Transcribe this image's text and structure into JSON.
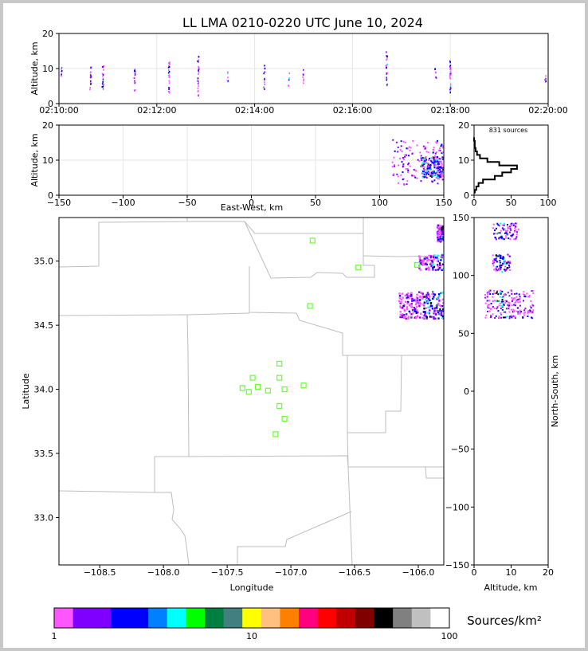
{
  "chart_data": [
    {
      "type": "scatter",
      "panel": "time-altitude",
      "title": "LL LMA 0210-0220 UTC June 10, 2024",
      "xlabel": "",
      "ylabel": "Altitude, km",
      "xticks": [
        "02:10:00",
        "02:12:00",
        "02:14:00",
        "02:16:00",
        "02:18:00",
        "02:20:00"
      ],
      "yticks": [
        "0",
        "10",
        "20"
      ],
      "xlim": [
        0,
        10
      ],
      "ylim": [
        0,
        20
      ],
      "grid": true,
      "bursts": [
        {
          "t": 0.05,
          "alt": [
            7,
            11
          ],
          "n": 6
        },
        {
          "t": 0.65,
          "alt": [
            4,
            11
          ],
          "n": 18
        },
        {
          "t": 0.9,
          "alt": [
            4,
            11
          ],
          "n": 20
        },
        {
          "t": 1.55,
          "alt": [
            3,
            10
          ],
          "n": 16
        },
        {
          "t": 2.25,
          "alt": [
            3,
            12
          ],
          "n": 22
        },
        {
          "t": 2.85,
          "alt": [
            2,
            14
          ],
          "n": 26
        },
        {
          "t": 3.45,
          "alt": [
            6,
            9
          ],
          "n": 6
        },
        {
          "t": 4.2,
          "alt": [
            4,
            11
          ],
          "n": 12
        },
        {
          "t": 4.7,
          "alt": [
            5,
            9
          ],
          "n": 6
        },
        {
          "t": 5.0,
          "alt": [
            5,
            10
          ],
          "n": 8
        },
        {
          "t": 6.7,
          "alt": [
            5,
            15
          ],
          "n": 24
        },
        {
          "t": 7.7,
          "alt": [
            6,
            10
          ],
          "n": 8
        },
        {
          "t": 8.0,
          "alt": [
            3,
            13
          ],
          "n": 30
        },
        {
          "t": 9.95,
          "alt": [
            5,
            8
          ],
          "n": 6
        }
      ]
    },
    {
      "type": "scatter",
      "panel": "east-west-altitude",
      "xlabel": "East-West, km",
      "ylabel": "Altitude, km",
      "xticks": [
        "−150",
        "−100",
        "−50",
        "0",
        "50",
        "100",
        "150"
      ],
      "yticks": [
        "0",
        "10",
        "20"
      ],
      "xlim": [
        -150,
        150
      ],
      "ylim": [
        0,
        20
      ],
      "grid": true,
      "cluster": {
        "x": [
          110,
          150
        ],
        "alt": [
          3,
          16
        ],
        "core_x": [
          132,
          150
        ],
        "core_alt": [
          5,
          11
        ]
      }
    },
    {
      "type": "line",
      "panel": "altitude-histogram",
      "annotation": "831 sources",
      "xticks": [
        "0",
        "50",
        "100"
      ],
      "yticks": [
        "0",
        "10",
        "20"
      ],
      "xlim": [
        0,
        100
      ],
      "ylim": [
        0,
        20
      ],
      "alt": [
        1,
        2,
        3,
        4,
        5,
        6,
        7,
        8,
        9,
        10,
        11,
        12,
        13,
        14,
        15,
        16
      ],
      "count": [
        1,
        3,
        6,
        12,
        28,
        38,
        50,
        58,
        34,
        18,
        8,
        4,
        2,
        1,
        1,
        0
      ]
    },
    {
      "type": "scatter",
      "panel": "plan-view",
      "xlabel": "Longitude",
      "ylabel": "Latitude",
      "xticks": [
        "−108.5",
        "−108.0",
        "−107.5",
        "−107.0",
        "−106.5",
        "−106.0"
      ],
      "yticks": [
        "33.0",
        "33.5",
        "34.0",
        "34.5",
        "35.0"
      ],
      "xlim": [
        -108.82,
        -105.8
      ],
      "ylim": [
        32.63,
        35.34
      ],
      "stations": [
        {
          "lon": -106.83,
          "lat": 35.16
        },
        {
          "lon": -106.47,
          "lat": 34.95
        },
        {
          "lon": -106.01,
          "lat": 34.97
        },
        {
          "lon": -106.85,
          "lat": 34.65
        },
        {
          "lon": -107.09,
          "lat": 34.2
        },
        {
          "lon": -107.3,
          "lat": 34.09
        },
        {
          "lon": -107.09,
          "lat": 34.09
        },
        {
          "lon": -107.38,
          "lat": 34.01
        },
        {
          "lon": -107.26,
          "lat": 34.02
        },
        {
          "lon": -107.33,
          "lat": 33.98
        },
        {
          "lon": -107.18,
          "lat": 33.99
        },
        {
          "lon": -107.05,
          "lat": 34.0
        },
        {
          "lon": -106.9,
          "lat": 34.03
        },
        {
          "lon": -107.09,
          "lat": 33.87
        },
        {
          "lon": -107.05,
          "lat": 33.77
        },
        {
          "lon": -107.12,
          "lat": 33.65
        }
      ],
      "source_clusters": [
        {
          "lon": [
            -105.85,
            -105.8
          ],
          "lat": [
            35.15,
            35.28
          ]
        },
        {
          "lon": [
            -106.0,
            -105.8
          ],
          "lat": [
            34.93,
            35.05
          ]
        },
        {
          "lon": [
            -106.15,
            -105.8
          ],
          "lat": [
            34.55,
            34.76
          ]
        }
      ]
    },
    {
      "type": "scatter",
      "panel": "altitude-north-south",
      "xlabel": "Altitude, km",
      "ylabel": "North-South, km",
      "xticks": [
        "0",
        "10",
        "20"
      ],
      "yticks": [
        "150",
        "100",
        "50",
        "0",
        "−50",
        "−100",
        "−150"
      ],
      "xlim": [
        0,
        20
      ],
      "ylim": [
        -150,
        150
      ],
      "clusters": [
        {
          "ns": [
            131,
            145
          ],
          "alt": [
            5,
            12
          ]
        },
        {
          "ns": [
            103,
            118
          ],
          "alt": [
            5,
            10
          ]
        },
        {
          "ns": [
            63,
            87
          ],
          "alt": [
            3,
            16
          ]
        }
      ]
    }
  ],
  "colorbar": {
    "label": "Sources/km²",
    "ticks": [
      "1",
      "10",
      "100"
    ],
    "colors": [
      "#ff55ff",
      "#8000ff",
      "#8000ff",
      "#0000ff",
      "#0000ff",
      "#0080ff",
      "#00ffff",
      "#00ff00",
      "#008040",
      "#408080",
      "#ffff00",
      "#ffc080",
      "#ff8000",
      "#ff0080",
      "#ff0000",
      "#c00000",
      "#800000",
      "#000000",
      "#808080",
      "#c0c0c0",
      "#ffffff"
    ]
  }
}
